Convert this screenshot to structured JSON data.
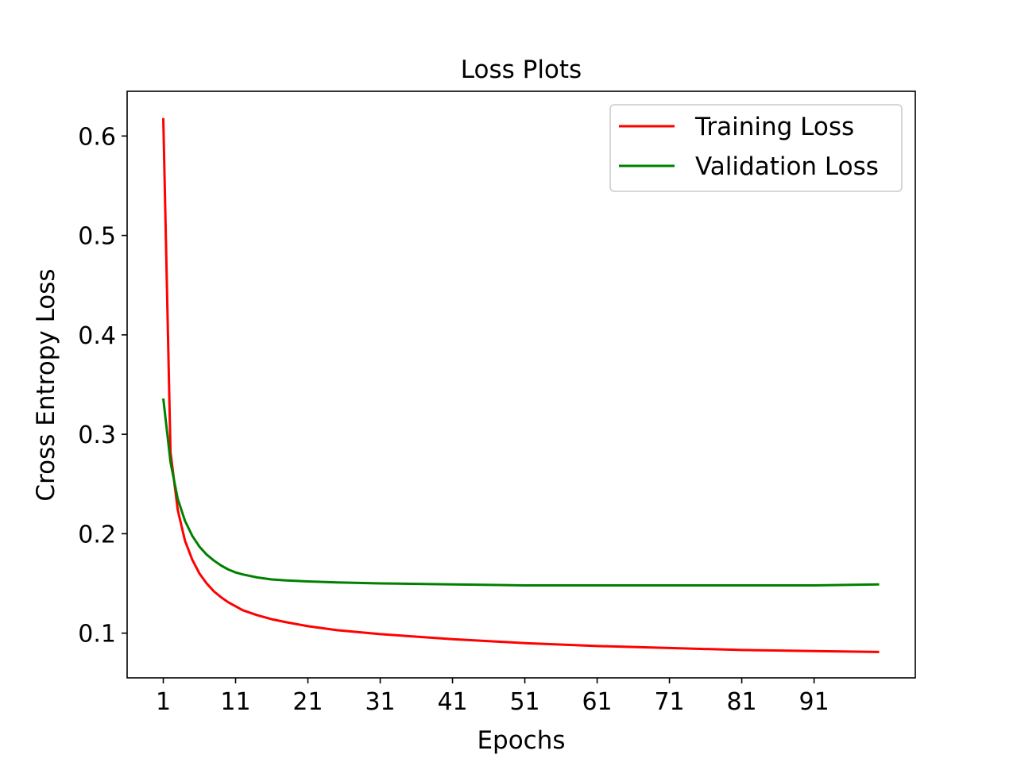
{
  "chart_data": {
    "type": "line",
    "title": "Loss Plots",
    "xlabel": "Epochs",
    "ylabel": "Cross Entropy Loss",
    "xlim": [
      -4,
      105
    ],
    "ylim": [
      0.055,
      0.645
    ],
    "x_ticks": [
      1,
      11,
      21,
      31,
      41,
      51,
      61,
      71,
      81,
      91
    ],
    "y_ticks": [
      0.1,
      0.2,
      0.3,
      0.4,
      0.5,
      0.6
    ],
    "grid": false,
    "legend_position": "upper right",
    "x": [
      1,
      2,
      3,
      4,
      5,
      6,
      7,
      8,
      9,
      10,
      11,
      12,
      14,
      16,
      18,
      21,
      25,
      31,
      41,
      51,
      61,
      71,
      81,
      91,
      100
    ],
    "series": [
      {
        "name": "Training Loss",
        "color": "#ff0000",
        "values": [
          0.618,
          0.282,
          0.224,
          0.193,
          0.174,
          0.16,
          0.15,
          0.142,
          0.136,
          0.131,
          0.127,
          0.123,
          0.118,
          0.114,
          0.111,
          0.107,
          0.103,
          0.099,
          0.094,
          0.09,
          0.087,
          0.085,
          0.083,
          0.082,
          0.081
        ]
      },
      {
        "name": "Validation Loss",
        "color": "#008000",
        "values": [
          0.336,
          0.272,
          0.235,
          0.213,
          0.198,
          0.187,
          0.179,
          0.173,
          0.168,
          0.164,
          0.161,
          0.159,
          0.156,
          0.154,
          0.153,
          0.152,
          0.151,
          0.15,
          0.149,
          0.148,
          0.148,
          0.148,
          0.148,
          0.148,
          0.149
        ]
      }
    ]
  }
}
